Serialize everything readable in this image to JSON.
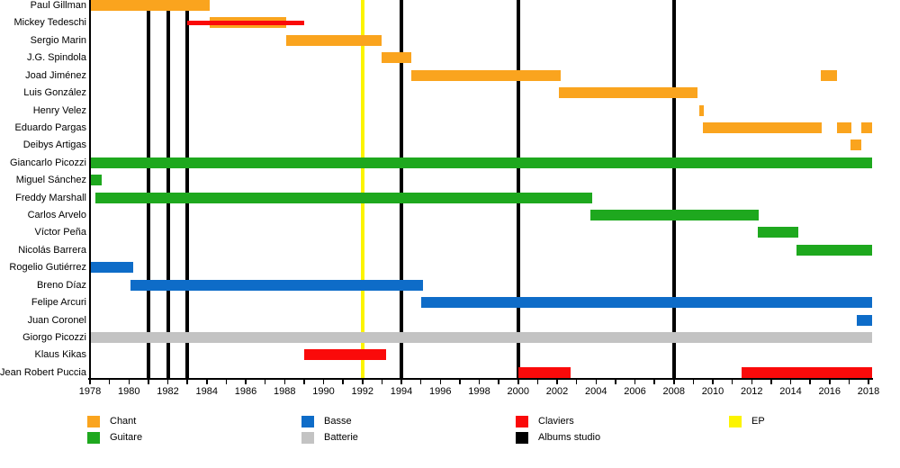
{
  "chart_data": {
    "type": "timeline",
    "description": "Band members timeline (Gantt-style) with instrument roles per member, studio album release lines and an EP line",
    "x_axis": {
      "start": 1978,
      "end": 2018,
      "plot_end": 2018.2,
      "label_step": 2,
      "tick_labels": [
        "1978",
        "1980",
        "1982",
        "1984",
        "1986",
        "1988",
        "1990",
        "1992",
        "1994",
        "1996",
        "1998",
        "2000",
        "2002",
        "2004",
        "2006",
        "2008",
        "2010",
        "2012",
        "2014",
        "2016",
        "2018"
      ]
    },
    "colors": {
      "chant": "#FAA41E",
      "guitare": "#1EA81E",
      "basse": "#0E6CC8",
      "batterie": "#C3C3C3",
      "claviers": "#FA0A0A",
      "albums": "#000000",
      "ep": "#FCF400"
    },
    "rows": [
      {
        "name": "Paul Gillman",
        "segments": [
          {
            "role": "chant",
            "from": 1978.0,
            "to": 1984.15
          }
        ]
      },
      {
        "name": "Mickey Tedeschi",
        "segments": [
          {
            "role": "chant",
            "from": 1984.15,
            "to": 1988.1
          },
          {
            "role": "claviers",
            "from": 1983.0,
            "to": 1989.0,
            "thin": true
          }
        ]
      },
      {
        "name": "Sergio Marin",
        "segments": [
          {
            "role": "chant",
            "from": 1988.1,
            "to": 1993.0
          }
        ]
      },
      {
        "name": "J.G. Spindola",
        "segments": [
          {
            "role": "chant",
            "from": 1993.0,
            "to": 1994.5
          }
        ]
      },
      {
        "name": "Joad Jiménez",
        "segments": [
          {
            "role": "chant",
            "from": 1994.5,
            "to": 2002.2
          },
          {
            "role": "chant",
            "from": 2015.55,
            "to": 2016.4
          }
        ]
      },
      {
        "name": "Luis González",
        "segments": [
          {
            "role": "chant",
            "from": 2002.1,
            "to": 2009.2
          }
        ]
      },
      {
        "name": "Henry Velez",
        "segments": [
          {
            "role": "chant",
            "from": 2009.3,
            "to": 2009.55
          }
        ]
      },
      {
        "name": "Eduardo Pargas",
        "segments": [
          {
            "role": "chant",
            "from": 2009.5,
            "to": 2015.6
          },
          {
            "role": "chant",
            "from": 2016.4,
            "to": 2017.1
          },
          {
            "role": "chant",
            "from": 2017.65,
            "to": 2018.2
          }
        ]
      },
      {
        "name": "Deibys Artigas",
        "segments": [
          {
            "role": "chant",
            "from": 2017.08,
            "to": 2017.65
          }
        ]
      },
      {
        "name": "Giancarlo Picozzi",
        "segments": [
          {
            "role": "guitare",
            "from": 1978.0,
            "to": 2018.2
          }
        ]
      },
      {
        "name": "Miguel Sánchez",
        "segments": [
          {
            "role": "guitare",
            "from": 1978.0,
            "to": 1978.6
          }
        ]
      },
      {
        "name": "Freddy Marshall",
        "segments": [
          {
            "role": "guitare",
            "from": 1978.3,
            "to": 2003.8
          }
        ]
      },
      {
        "name": "Carlos Arvelo",
        "segments": [
          {
            "role": "guitare",
            "from": 2003.7,
            "to": 2012.35
          }
        ]
      },
      {
        "name": "Víctor Peña",
        "segments": [
          {
            "role": "guitare",
            "from": 2012.3,
            "to": 2014.4
          }
        ]
      },
      {
        "name": "Nicolás Barrera",
        "segments": [
          {
            "role": "guitare",
            "from": 2014.3,
            "to": 2018.2
          }
        ]
      },
      {
        "name": "Rogelio Gutiérrez",
        "segments": [
          {
            "role": "basse",
            "from": 1978.0,
            "to": 1980.2
          }
        ]
      },
      {
        "name": "Breno Díaz",
        "segments": [
          {
            "role": "basse",
            "from": 1980.1,
            "to": 1995.1
          }
        ]
      },
      {
        "name": "Felipe Arcuri",
        "segments": [
          {
            "role": "basse",
            "from": 1995.0,
            "to": 2018.2
          }
        ]
      },
      {
        "name": "Juan Coronel",
        "segments": [
          {
            "role": "basse",
            "from": 2017.4,
            "to": 2018.2
          }
        ]
      },
      {
        "name": "Giorgo Picozzi",
        "segments": [
          {
            "role": "batterie",
            "from": 1978.0,
            "to": 2018.2
          }
        ]
      },
      {
        "name": "Klaus Kikas",
        "segments": [
          {
            "role": "claviers",
            "from": 1989.0,
            "to": 1993.2
          }
        ]
      },
      {
        "name": "Jean Robert Puccia",
        "segments": [
          {
            "role": "claviers",
            "from": 2000.0,
            "to": 2002.7
          },
          {
            "role": "claviers",
            "from": 2011.5,
            "to": 2018.2
          }
        ]
      }
    ],
    "events": {
      "albums_studio_years": [
        1981,
        1982,
        1983,
        1994,
        2000,
        2008
      ],
      "ep_years": [
        1992
      ]
    },
    "legend": {
      "columns": [
        {
          "items": [
            {
              "label": "Chant",
              "color": "chant"
            },
            {
              "label": "Guitare",
              "color": "guitare"
            }
          ]
        },
        {
          "items": [
            {
              "label": "Basse",
              "color": "basse"
            },
            {
              "label": "Batterie",
              "color": "batterie"
            }
          ]
        },
        {
          "items": [
            {
              "label": "Claviers",
              "color": "claviers"
            },
            {
              "label": "Albums studio",
              "color": "albums"
            }
          ]
        },
        {
          "items": [
            {
              "label": "EP",
              "color": "ep"
            }
          ]
        }
      ]
    }
  }
}
